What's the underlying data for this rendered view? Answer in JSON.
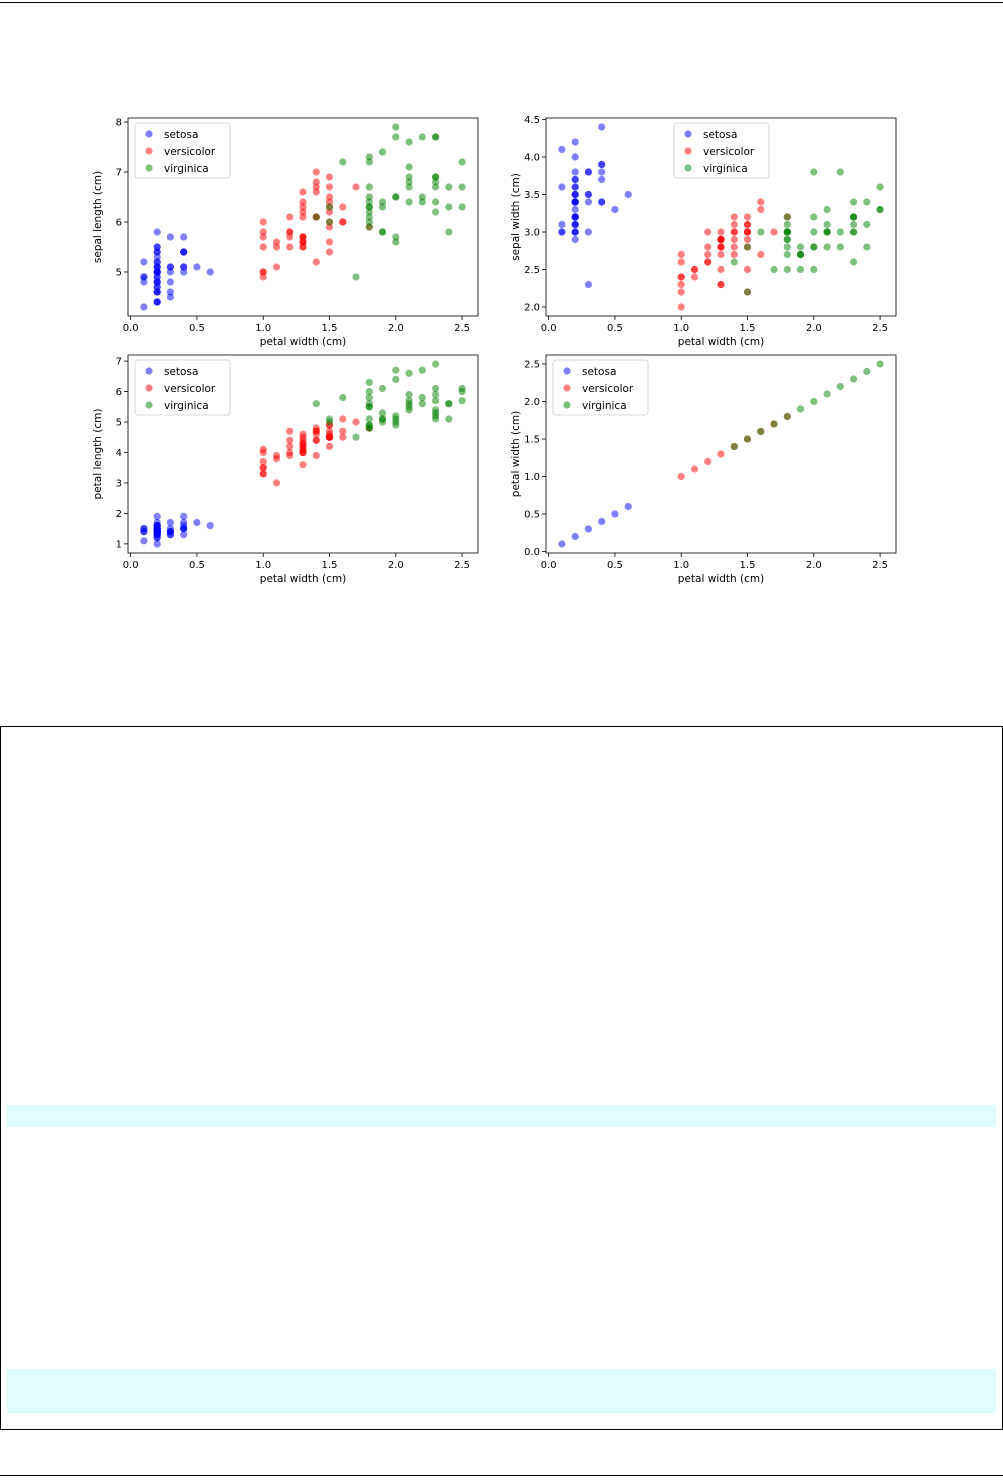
{
  "colors": {
    "setosa": "#0000ff",
    "versicolor": "#ff0000",
    "virginica": "#008000",
    "band": "#e0fcfc"
  },
  "legend_labels": [
    "setosa",
    "versicolor",
    "virginica"
  ],
  "chart_data": [
    {
      "type": "scatter",
      "title": "",
      "xlabel": "petal width (cm)",
      "ylabel": "sepal length (cm)",
      "xlim": [
        -0.02,
        2.62
      ],
      "ylim": [
        4.12,
        8.08
      ],
      "xticks": [
        "0.0",
        "0.5",
        "1.0",
        "1.5",
        "2.0",
        "2.5"
      ],
      "yticks": [
        "5",
        "6",
        "7",
        "8"
      ],
      "legend": "top-left",
      "series": [
        {
          "name": "setosa",
          "x": [
            0.2,
            0.2,
            0.2,
            0.2,
            0.2,
            0.4,
            0.3,
            0.2,
            0.2,
            0.1,
            0.2,
            0.2,
            0.1,
            0.1,
            0.2,
            0.4,
            0.4,
            0.3,
            0.3,
            0.3,
            0.2,
            0.4,
            0.2,
            0.5,
            0.2,
            0.2,
            0.4,
            0.2,
            0.2,
            0.2,
            0.2,
            0.4,
            0.1,
            0.2,
            0.2,
            0.2,
            0.2,
            0.1,
            0.2,
            0.2,
            0.3,
            0.3,
            0.2,
            0.6,
            0.4,
            0.3,
            0.2,
            0.2,
            0.2,
            0.2
          ],
          "y": [
            5.1,
            4.9,
            4.7,
            4.6,
            5.0,
            5.4,
            4.6,
            5.0,
            4.4,
            4.9,
            5.4,
            4.8,
            4.8,
            4.3,
            5.8,
            5.7,
            5.4,
            5.1,
            5.7,
            5.1,
            5.4,
            5.1,
            4.6,
            5.1,
            4.8,
            5.0,
            5.0,
            5.2,
            5.2,
            4.7,
            4.8,
            5.4,
            5.2,
            5.5,
            4.9,
            5.0,
            5.5,
            4.9,
            4.4,
            5.1,
            5.0,
            4.5,
            4.4,
            5.0,
            5.1,
            4.8,
            5.1,
            4.6,
            5.3,
            5.0
          ]
        },
        {
          "name": "versicolor",
          "x": [
            1.4,
            1.5,
            1.5,
            1.3,
            1.5,
            1.3,
            1.6,
            1.0,
            1.3,
            1.4,
            1.0,
            1.5,
            1.0,
            1.4,
            1.3,
            1.4,
            1.5,
            1.0,
            1.5,
            1.1,
            1.8,
            1.3,
            1.5,
            1.2,
            1.3,
            1.4,
            1.4,
            1.7,
            1.5,
            1.0,
            1.1,
            1.0,
            1.2,
            1.6,
            1.5,
            1.6,
            1.5,
            1.3,
            1.3,
            1.3,
            1.2,
            1.4,
            1.2,
            1.0,
            1.3,
            1.2,
            1.3,
            1.3,
            1.1,
            1.3
          ],
          "y": [
            7.0,
            6.4,
            6.9,
            5.5,
            6.5,
            5.7,
            6.3,
            4.9,
            6.6,
            5.2,
            5.0,
            5.9,
            6.0,
            6.1,
            5.6,
            6.7,
            5.6,
            5.8,
            6.2,
            5.6,
            5.9,
            6.1,
            6.3,
            6.1,
            6.4,
            6.6,
            6.8,
            6.7,
            6.0,
            5.7,
            5.5,
            5.5,
            5.8,
            6.0,
            5.4,
            6.0,
            6.7,
            6.3,
            5.6,
            5.5,
            5.5,
            6.1,
            5.8,
            5.0,
            5.6,
            5.7,
            5.7,
            6.2,
            5.1,
            5.7
          ]
        },
        {
          "name": "virginica",
          "x": [
            2.5,
            1.9,
            2.1,
            1.8,
            2.2,
            2.1,
            1.7,
            1.8,
            1.8,
            2.5,
            2.0,
            1.9,
            2.1,
            2.0,
            2.4,
            2.3,
            1.8,
            2.2,
            2.3,
            1.5,
            2.3,
            2.0,
            2.0,
            1.8,
            2.1,
            1.8,
            1.8,
            1.8,
            2.1,
            1.6,
            1.9,
            2.0,
            2.2,
            1.5,
            1.4,
            2.3,
            2.4,
            1.8,
            1.8,
            2.1,
            2.4,
            2.3,
            1.9,
            2.3,
            2.5,
            2.3,
            1.9,
            2.0,
            2.3,
            1.8
          ],
          "y": [
            6.3,
            5.8,
            7.1,
            6.3,
            6.5,
            7.6,
            4.9,
            7.3,
            6.7,
            7.2,
            6.5,
            6.4,
            6.8,
            5.7,
            5.8,
            6.4,
            6.5,
            7.7,
            7.7,
            6.0,
            6.9,
            5.6,
            7.7,
            6.3,
            6.7,
            7.2,
            6.2,
            6.1,
            6.4,
            7.2,
            7.4,
            7.9,
            6.4,
            6.3,
            6.1,
            7.7,
            6.3,
            6.4,
            6.0,
            6.9,
            6.7,
            6.9,
            5.8,
            6.8,
            6.7,
            6.7,
            6.3,
            6.5,
            6.2,
            5.9
          ]
        }
      ]
    },
    {
      "type": "scatter",
      "title": "",
      "xlabel": "petal width (cm)",
      "ylabel": "sepal width (cm)",
      "xlim": [
        -0.02,
        2.62
      ],
      "ylim": [
        1.88,
        4.52
      ],
      "xticks": [
        "0.0",
        "0.5",
        "1.0",
        "1.5",
        "2.0",
        "2.5"
      ],
      "yticks": [
        "2.0",
        "2.5",
        "3.0",
        "3.5",
        "4.0",
        "4.5"
      ],
      "legend": "top-center",
      "series": [
        {
          "name": "setosa",
          "x": [
            0.2,
            0.2,
            0.2,
            0.2,
            0.2,
            0.4,
            0.3,
            0.2,
            0.2,
            0.1,
            0.2,
            0.2,
            0.1,
            0.1,
            0.2,
            0.4,
            0.4,
            0.3,
            0.3,
            0.3,
            0.2,
            0.4,
            0.2,
            0.5,
            0.2,
            0.2,
            0.4,
            0.2,
            0.2,
            0.2,
            0.2,
            0.4,
            0.1,
            0.2,
            0.2,
            0.2,
            0.2,
            0.1,
            0.2,
            0.2,
            0.3,
            0.3,
            0.2,
            0.6,
            0.4,
            0.3,
            0.2,
            0.2,
            0.2,
            0.2
          ],
          "y": [
            3.5,
            3.0,
            3.2,
            3.1,
            3.6,
            3.9,
            3.4,
            3.4,
            2.9,
            3.1,
            3.7,
            3.4,
            3.0,
            3.0,
            4.0,
            4.4,
            3.9,
            3.5,
            3.8,
            3.8,
            3.4,
            3.7,
            3.6,
            3.3,
            3.4,
            3.0,
            3.4,
            3.5,
            3.4,
            3.2,
            3.1,
            3.4,
            4.1,
            4.2,
            3.1,
            3.2,
            3.5,
            3.6,
            3.0,
            3.4,
            3.5,
            2.3,
            3.2,
            3.5,
            3.8,
            3.0,
            3.8,
            3.2,
            3.7,
            3.3
          ]
        },
        {
          "name": "versicolor",
          "x": [
            1.4,
            1.5,
            1.5,
            1.3,
            1.5,
            1.3,
            1.6,
            1.0,
            1.3,
            1.4,
            1.0,
            1.5,
            1.0,
            1.4,
            1.3,
            1.4,
            1.5,
            1.0,
            1.5,
            1.1,
            1.8,
            1.3,
            1.5,
            1.2,
            1.3,
            1.4,
            1.4,
            1.7,
            1.5,
            1.0,
            1.1,
            1.0,
            1.2,
            1.6,
            1.5,
            1.6,
            1.5,
            1.3,
            1.3,
            1.3,
            1.2,
            1.4,
            1.2,
            1.0,
            1.3,
            1.2,
            1.3,
            1.3,
            1.1,
            1.3
          ],
          "y": [
            3.2,
            3.2,
            3.1,
            2.3,
            2.8,
            2.8,
            3.3,
            2.4,
            2.9,
            2.7,
            2.0,
            3.0,
            2.2,
            2.9,
            2.9,
            3.1,
            3.0,
            2.7,
            2.2,
            2.5,
            3.2,
            2.8,
            2.5,
            2.8,
            2.9,
            3.0,
            2.8,
            3.0,
            2.9,
            2.6,
            2.4,
            2.4,
            2.7,
            2.7,
            3.0,
            3.4,
            3.1,
            2.3,
            3.0,
            2.5,
            2.6,
            3.0,
            2.6,
            2.3,
            2.7,
            3.0,
            2.9,
            2.9,
            2.5,
            2.8
          ]
        },
        {
          "name": "virginica",
          "x": [
            2.5,
            1.9,
            2.1,
            1.8,
            2.2,
            2.1,
            1.7,
            1.8,
            1.8,
            2.5,
            2.0,
            1.9,
            2.1,
            2.0,
            2.4,
            2.3,
            1.8,
            2.2,
            2.3,
            1.5,
            2.3,
            2.0,
            2.0,
            1.8,
            2.1,
            1.8,
            1.8,
            1.8,
            2.1,
            1.6,
            1.9,
            2.0,
            2.2,
            1.5,
            1.4,
            2.3,
            2.4,
            1.8,
            1.8,
            2.1,
            2.4,
            2.3,
            1.9,
            2.3,
            2.5,
            2.3,
            1.9,
            2.0,
            2.3,
            1.8
          ],
          "y": [
            3.3,
            2.7,
            3.0,
            2.9,
            3.0,
            3.0,
            2.5,
            2.9,
            2.5,
            3.6,
            3.2,
            2.7,
            3.0,
            2.5,
            2.8,
            3.2,
            3.0,
            3.8,
            2.6,
            2.2,
            3.2,
            2.8,
            2.8,
            2.7,
            3.3,
            3.2,
            2.8,
            3.0,
            2.8,
            3.0,
            2.8,
            3.8,
            2.8,
            2.8,
            2.6,
            3.0,
            3.4,
            3.1,
            3.0,
            3.1,
            3.1,
            3.1,
            2.7,
            3.2,
            3.3,
            3.0,
            2.5,
            3.0,
            3.4,
            3.0
          ]
        }
      ]
    },
    {
      "type": "scatter",
      "title": "",
      "xlabel": "petal width (cm)",
      "ylabel": "petal length (cm)",
      "xlim": [
        -0.02,
        2.62
      ],
      "ylim": [
        0.7,
        7.2
      ],
      "xticks": [
        "0.0",
        "0.5",
        "1.0",
        "1.5",
        "2.0",
        "2.5"
      ],
      "yticks": [
        "1",
        "2",
        "3",
        "4",
        "5",
        "6",
        "7"
      ],
      "legend": "top-left",
      "series": [
        {
          "name": "setosa",
          "x": [
            0.2,
            0.2,
            0.2,
            0.2,
            0.2,
            0.4,
            0.3,
            0.2,
            0.2,
            0.1,
            0.2,
            0.2,
            0.1,
            0.1,
            0.2,
            0.4,
            0.4,
            0.3,
            0.3,
            0.3,
            0.2,
            0.4,
            0.2,
            0.5,
            0.2,
            0.2,
            0.4,
            0.2,
            0.2,
            0.2,
            0.2,
            0.4,
            0.1,
            0.2,
            0.2,
            0.2,
            0.2,
            0.1,
            0.2,
            0.2,
            0.3,
            0.3,
            0.2,
            0.6,
            0.4,
            0.3,
            0.2,
            0.2,
            0.2,
            0.2
          ],
          "y": [
            1.4,
            1.4,
            1.3,
            1.5,
            1.4,
            1.7,
            1.4,
            1.5,
            1.4,
            1.5,
            1.5,
            1.6,
            1.4,
            1.1,
            1.2,
            1.5,
            1.3,
            1.4,
            1.7,
            1.5,
            1.7,
            1.5,
            1.0,
            1.7,
            1.9,
            1.6,
            1.6,
            1.5,
            1.4,
            1.6,
            1.6,
            1.5,
            1.5,
            1.4,
            1.5,
            1.2,
            1.3,
            1.4,
            1.3,
            1.5,
            1.3,
            1.3,
            1.3,
            1.6,
            1.9,
            1.4,
            1.6,
            1.4,
            1.5,
            1.4
          ]
        },
        {
          "name": "versicolor",
          "x": [
            1.4,
            1.5,
            1.5,
            1.3,
            1.5,
            1.3,
            1.6,
            1.0,
            1.3,
            1.4,
            1.0,
            1.5,
            1.0,
            1.4,
            1.3,
            1.4,
            1.5,
            1.0,
            1.5,
            1.1,
            1.8,
            1.3,
            1.5,
            1.2,
            1.3,
            1.4,
            1.4,
            1.7,
            1.5,
            1.0,
            1.1,
            1.0,
            1.2,
            1.6,
            1.5,
            1.6,
            1.5,
            1.3,
            1.3,
            1.3,
            1.2,
            1.4,
            1.2,
            1.0,
            1.3,
            1.2,
            1.3,
            1.3,
            1.1,
            1.3
          ],
          "y": [
            4.7,
            4.5,
            4.9,
            4.0,
            4.6,
            4.5,
            4.7,
            3.3,
            4.6,
            3.9,
            3.5,
            4.2,
            4.0,
            4.7,
            3.6,
            4.4,
            4.5,
            4.1,
            4.5,
            3.9,
            4.8,
            4.0,
            4.9,
            4.7,
            4.3,
            4.4,
            4.8,
            5.0,
            4.5,
            3.5,
            3.8,
            3.7,
            3.9,
            5.1,
            4.5,
            4.5,
            4.7,
            4.4,
            4.1,
            4.0,
            4.4,
            4.6,
            4.0,
            3.3,
            4.2,
            4.2,
            4.2,
            4.3,
            3.0,
            4.1
          ]
        },
        {
          "name": "virginica",
          "x": [
            2.5,
            1.9,
            2.1,
            1.8,
            2.2,
            2.1,
            1.7,
            1.8,
            1.8,
            2.5,
            2.0,
            1.9,
            2.1,
            2.0,
            2.4,
            2.3,
            1.8,
            2.2,
            2.3,
            1.5,
            2.3,
            2.0,
            2.0,
            1.8,
            2.1,
            1.8,
            1.8,
            1.8,
            2.1,
            1.6,
            1.9,
            2.0,
            2.2,
            1.5,
            1.4,
            2.3,
            2.4,
            1.8,
            1.8,
            2.1,
            2.4,
            2.3,
            1.9,
            2.3,
            2.5,
            2.3,
            1.9,
            2.0,
            2.3,
            1.8
          ],
          "y": [
            6.0,
            5.1,
            5.9,
            5.6,
            5.8,
            6.6,
            4.5,
            6.3,
            5.8,
            6.1,
            5.1,
            5.3,
            5.5,
            5.0,
            5.1,
            5.3,
            5.5,
            6.7,
            6.9,
            5.0,
            5.7,
            4.9,
            6.7,
            4.9,
            5.7,
            6.0,
            4.8,
            4.9,
            5.6,
            5.8,
            6.1,
            6.4,
            5.6,
            5.1,
            5.6,
            6.1,
            5.6,
            5.5,
            4.8,
            5.4,
            5.6,
            5.1,
            5.1,
            5.9,
            5.7,
            5.2,
            5.0,
            5.2,
            5.4,
            5.1
          ]
        }
      ]
    },
    {
      "type": "scatter",
      "title": "",
      "xlabel": "petal width (cm)",
      "ylabel": "petal width (cm)",
      "xlim": [
        -0.02,
        2.62
      ],
      "ylim": [
        -0.02,
        2.62
      ],
      "xticks": [
        "0.0",
        "0.5",
        "1.0",
        "1.5",
        "2.0",
        "2.5"
      ],
      "yticks": [
        "0.0",
        "0.5",
        "1.0",
        "1.5",
        "2.0",
        "2.5"
      ],
      "legend": "top-left",
      "series": [
        {
          "name": "setosa",
          "x": [
            0.1,
            0.2,
            0.3,
            0.4,
            0.5,
            0.6
          ],
          "y": [
            0.1,
            0.2,
            0.3,
            0.4,
            0.5,
            0.6
          ]
        },
        {
          "name": "versicolor",
          "x": [
            1.0,
            1.1,
            1.2,
            1.3,
            1.4,
            1.5,
            1.6,
            1.7,
            1.8
          ],
          "y": [
            1.0,
            1.1,
            1.2,
            1.3,
            1.4,
            1.5,
            1.6,
            1.7,
            1.8
          ]
        },
        {
          "name": "virginica",
          "x": [
            1.4,
            1.5,
            1.6,
            1.7,
            1.8,
            1.9,
            2.0,
            2.1,
            2.2,
            2.3,
            2.4,
            2.5
          ],
          "y": [
            1.4,
            1.5,
            1.6,
            1.7,
            1.8,
            1.9,
            2.0,
            2.1,
            2.2,
            2.3,
            2.4,
            2.5
          ]
        }
      ]
    }
  ]
}
